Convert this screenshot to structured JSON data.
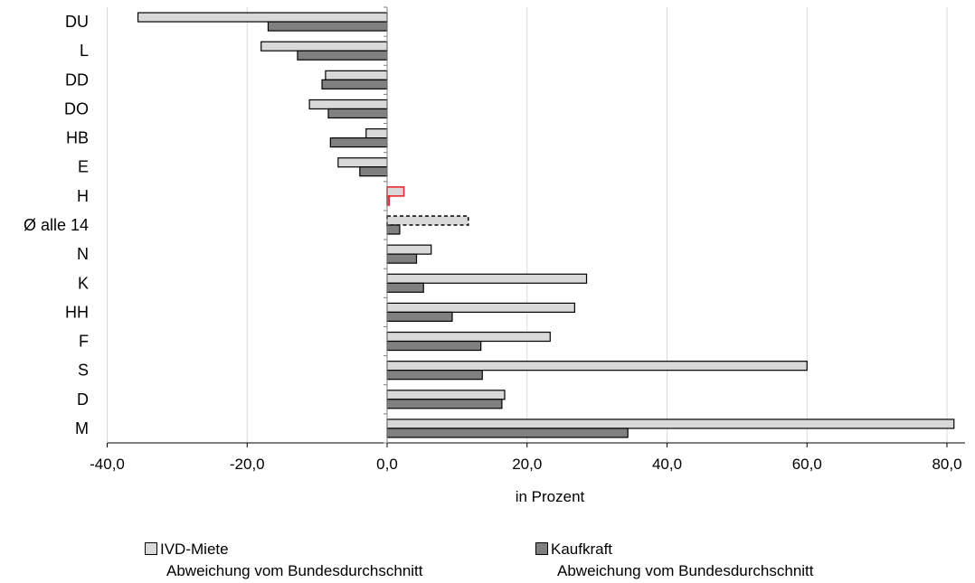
{
  "chart_data": {
    "type": "bar",
    "orientation": "horizontal",
    "categories": [
      "DU",
      "L",
      "DD",
      "DO",
      "HB",
      "E",
      "H",
      "Ø alle 14",
      "N",
      "K",
      "HH",
      "F",
      "S",
      "D",
      "M"
    ],
    "series": [
      {
        "name": "IVD-Miete",
        "name_line2": "Abweichung vom Bundesdurchschnitt",
        "values": [
          -35.6,
          -18.0,
          -8.8,
          -11.1,
          -3.0,
          -7.0,
          2.4,
          11.6,
          6.3,
          28.5,
          26.8,
          23.3,
          60.0,
          16.8,
          81.0
        ],
        "color": "#d9d9d9"
      },
      {
        "name": "Kaufkraft",
        "name_line2": "Abweichung vom Bundesdurchschnitt",
        "values": [
          -17.0,
          -12.8,
          -9.3,
          -8.4,
          -8.1,
          -3.9,
          0.3,
          1.8,
          4.2,
          5.2,
          9.3,
          13.4,
          13.6,
          16.4,
          34.4
        ],
        "color": "#808080"
      }
    ],
    "highlight": {
      "H": "#e8272c"
    },
    "dashed_outline": [
      "Ø alle 14"
    ],
    "xlabel": "in Prozent",
    "ylabel": "",
    "xlim": [
      -40,
      80
    ],
    "xticks": [
      -40,
      -20,
      0,
      20,
      40,
      60,
      80
    ],
    "xtick_labels": [
      "-40,0",
      "-20,0",
      "0,0",
      "20,0",
      "40,0",
      "60,0",
      "80,0"
    ],
    "grid": "vertical",
    "legend_position": "bottom"
  }
}
